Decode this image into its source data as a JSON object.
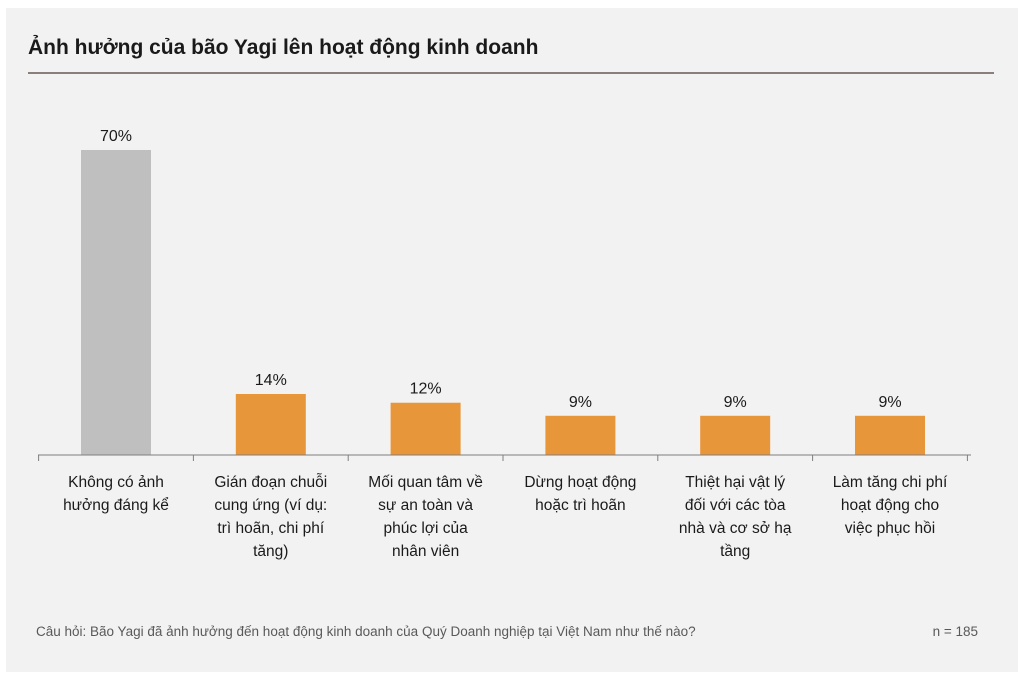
{
  "title": "Ảnh hưởng của bão Yagi lên hoạt động kinh doanh",
  "footnote": "Câu hỏi: Bão Yagi đã ảnh hưởng đến hoạt động kinh doanh của Quý Doanh nghiệp tại Việt Nam như thế nào?",
  "sample_size": "n = 185",
  "colors": {
    "highlight": "#bfbfbf",
    "bar": "#e8963a",
    "axis": "#7f7f7f"
  },
  "chart_data": {
    "type": "bar",
    "categories": [
      [
        "Không có ảnh",
        "hưởng đáng kể"
      ],
      [
        "Gián đoạn chuỗi",
        "cung ứng (ví dụ:",
        "trì hoãn, chi phí",
        "tăng)"
      ],
      [
        "Mối quan tâm về",
        "sự an toàn và",
        "phúc lợi của",
        "nhân viên"
      ],
      [
        "Dừng hoạt động",
        "hoặc trì hoãn"
      ],
      [
        "Thiệt hại vật lý",
        "đối với các tòa",
        "nhà và cơ sở hạ",
        "tầng"
      ],
      [
        "Làm tăng chi phí",
        "hoạt động cho",
        "việc phục hồi"
      ]
    ],
    "values": [
      70,
      14,
      12,
      9,
      9,
      9
    ],
    "data_labels": [
      "70%",
      "14%",
      "12%",
      "9%",
      "9%",
      "9%"
    ],
    "unit": "%",
    "ylim": [
      0,
      70
    ],
    "grid": false,
    "legend": "none"
  }
}
